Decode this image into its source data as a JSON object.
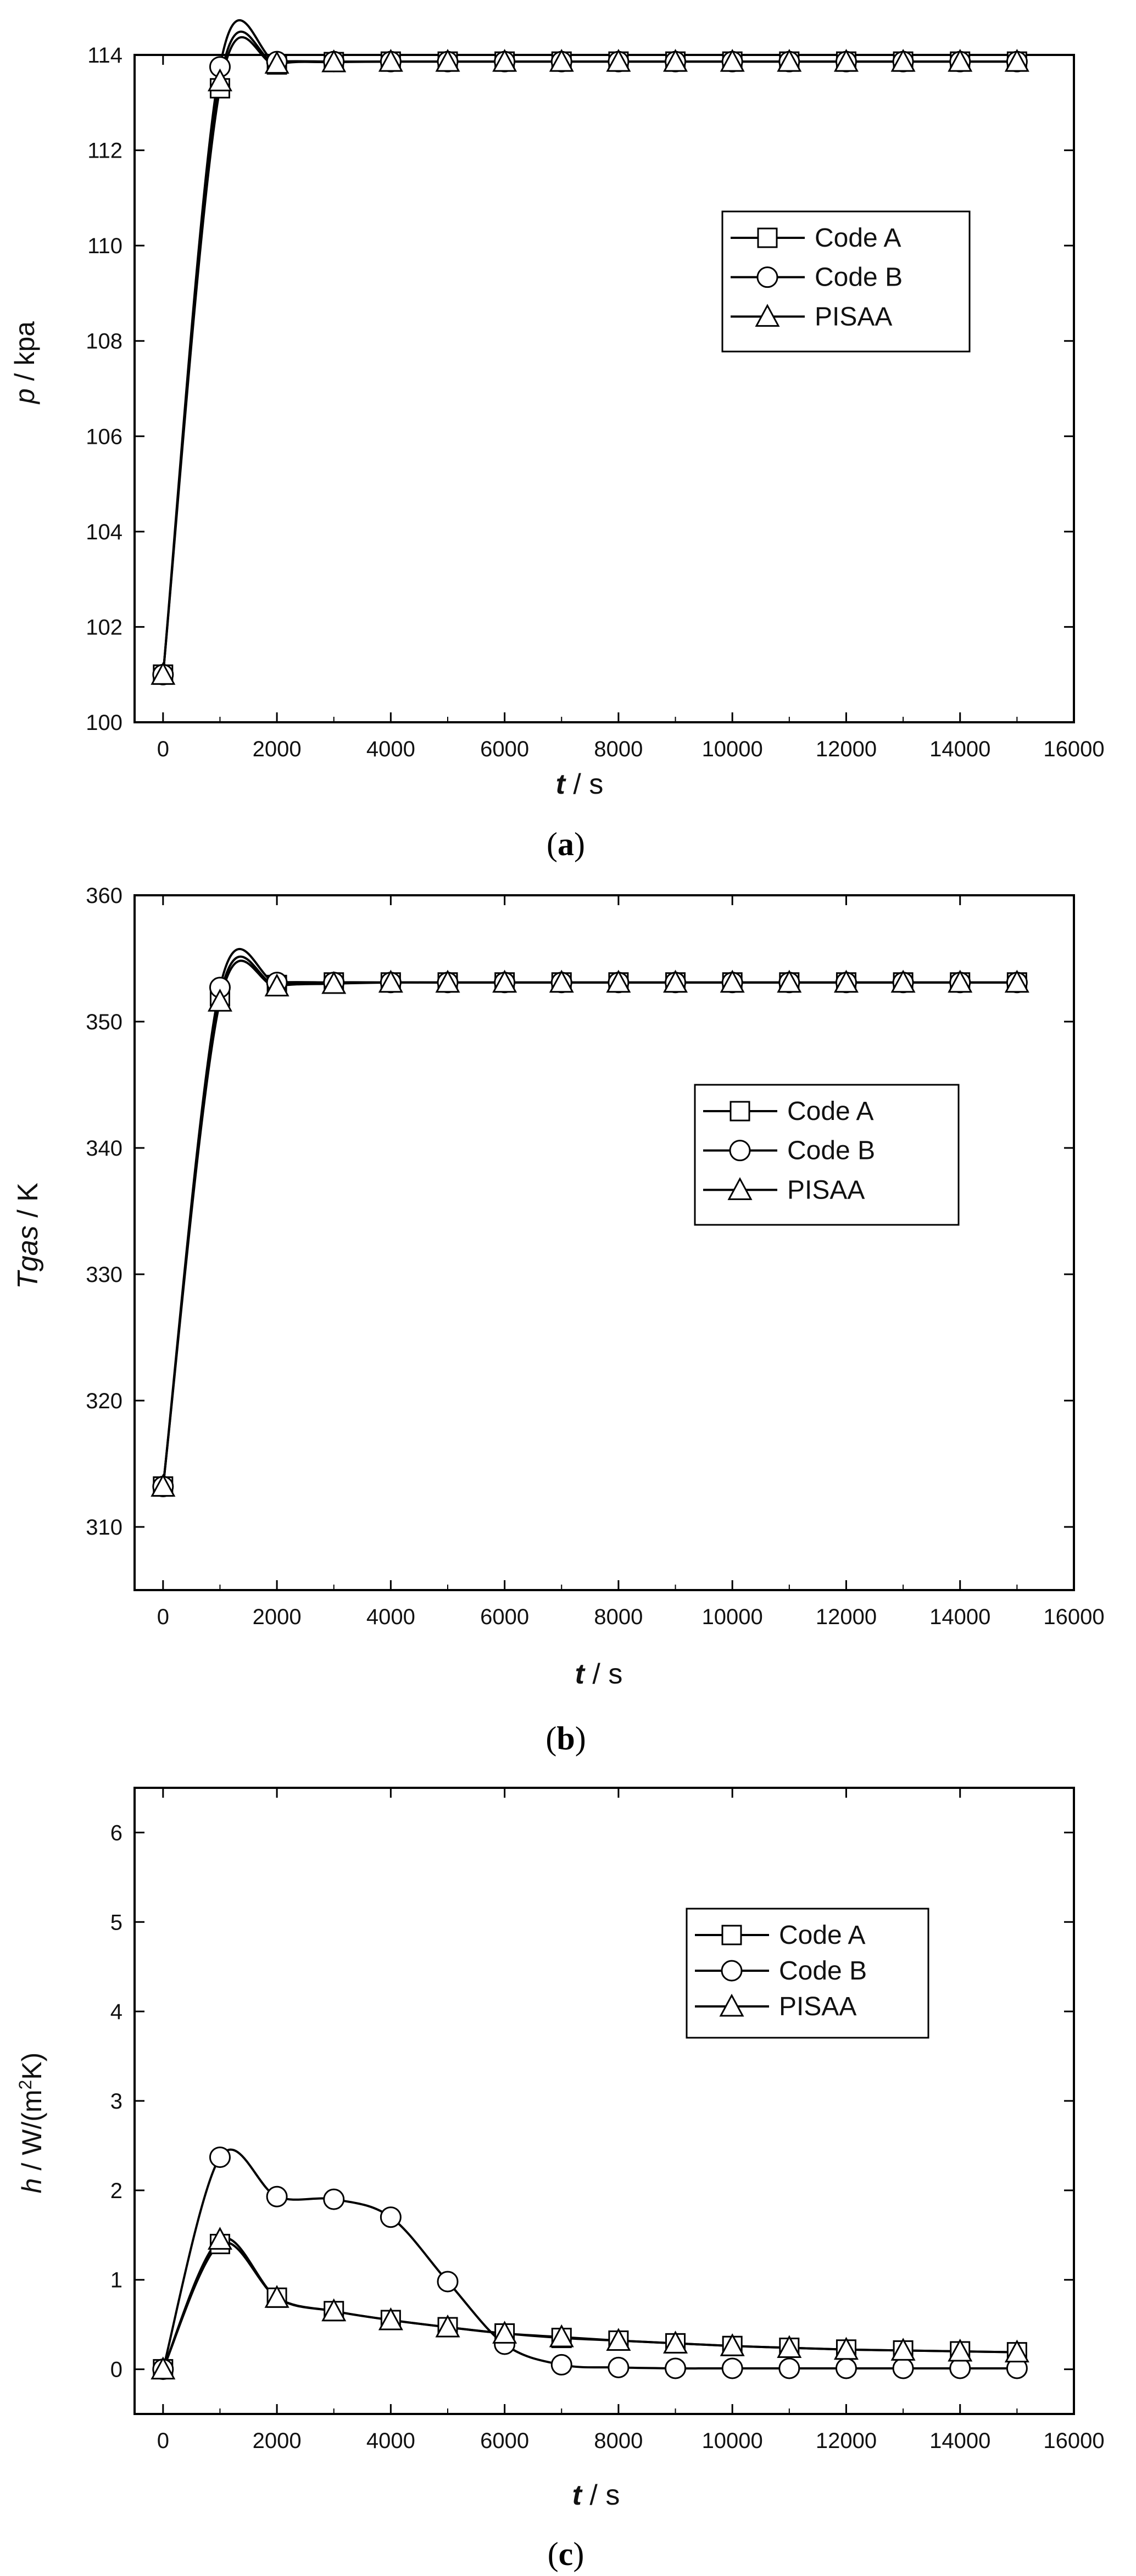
{
  "chart_data": [
    {
      "type": "line",
      "panel_label": "a",
      "xlabel": "t",
      "xlabel_unit": " / s",
      "ylabel": "p",
      "ylabel_unit": " / kpa",
      "xlim": [
        -500,
        16000
      ],
      "ylim": [
        100,
        114
      ],
      "xticks": [
        "0",
        "2000",
        "4000",
        "6000",
        "8000",
        "10000",
        "12000",
        "14000",
        "16000"
      ],
      "yticks": [
        "100",
        "102",
        "104",
        "106",
        "108",
        "110",
        "112",
        "114"
      ],
      "series": [
        {
          "name": "Code A",
          "marker": "square",
          "x": [
            0,
            1000,
            2000,
            3000,
            4000,
            5000,
            6000,
            7000,
            8000,
            9000,
            10000,
            11000,
            12000,
            13000,
            14000,
            15000
          ],
          "y": [
            101,
            113.3,
            113.8,
            113.85,
            113.86,
            113.86,
            113.86,
            113.86,
            113.86,
            113.86,
            113.86,
            113.86,
            113.86,
            113.86,
            113.86,
            113.86
          ]
        },
        {
          "name": "Code B",
          "marker": "circle",
          "x": [
            0,
            1000,
            2000,
            3000,
            4000,
            5000,
            6000,
            7000,
            8000,
            9000,
            10000,
            11000,
            12000,
            13000,
            14000,
            15000
          ],
          "y": [
            101,
            113.75,
            113.86,
            113.86,
            113.86,
            113.86,
            113.86,
            113.86,
            113.86,
            113.86,
            113.86,
            113.86,
            113.86,
            113.86,
            113.86,
            113.86
          ]
        },
        {
          "name": "PISAA",
          "marker": "triangle",
          "x": [
            0,
            1000,
            2000,
            3000,
            4000,
            5000,
            6000,
            7000,
            8000,
            9000,
            10000,
            11000,
            12000,
            13000,
            14000,
            15000
          ],
          "y": [
            101,
            113.45,
            113.82,
            113.85,
            113.86,
            113.86,
            113.86,
            113.86,
            113.86,
            113.86,
            113.86,
            113.86,
            113.86,
            113.86,
            113.86,
            113.86
          ]
        }
      ],
      "legend": {
        "position": "upper-right",
        "entries": [
          "Code A",
          "Code B",
          "PISAA"
        ]
      }
    },
    {
      "type": "line",
      "panel_label": "b",
      "xlabel": "t",
      "xlabel_unit": " / s",
      "ylabel": "Tgas",
      "ylabel_unit": " / K",
      "xlim": [
        -500,
        16000
      ],
      "ylim": [
        305,
        360
      ],
      "xticks": [
        "0",
        "2000",
        "4000",
        "6000",
        "8000",
        "10000",
        "12000",
        "14000",
        "16000"
      ],
      "yticks": [
        "310",
        "320",
        "330",
        "340",
        "350",
        "360"
      ],
      "series": [
        {
          "name": "Code A",
          "marker": "square",
          "x": [
            0,
            1000,
            2000,
            3000,
            4000,
            5000,
            6000,
            7000,
            8000,
            9000,
            10000,
            11000,
            12000,
            13000,
            14000,
            15000
          ],
          "y": [
            313.2,
            352,
            352.9,
            353.1,
            353.1,
            353.1,
            353.1,
            353.1,
            353.1,
            353.1,
            353.1,
            353.1,
            353.1,
            353.1,
            353.1,
            353.1
          ]
        },
        {
          "name": "Code B",
          "marker": "circle",
          "x": [
            0,
            1000,
            2000,
            3000,
            4000,
            5000,
            6000,
            7000,
            8000,
            9000,
            10000,
            11000,
            12000,
            13000,
            14000,
            15000
          ],
          "y": [
            313.2,
            352.7,
            353.1,
            353.1,
            353.1,
            353.1,
            353.1,
            353.1,
            353.1,
            353.1,
            353.1,
            353.1,
            353.1,
            353.1,
            353.1,
            353.1
          ]
        },
        {
          "name": "PISAA",
          "marker": "triangle",
          "x": [
            0,
            1000,
            2000,
            3000,
            4000,
            5000,
            6000,
            7000,
            8000,
            9000,
            10000,
            11000,
            12000,
            13000,
            14000,
            15000
          ],
          "y": [
            313.2,
            351.6,
            352.8,
            353,
            353.1,
            353.1,
            353.1,
            353.1,
            353.1,
            353.1,
            353.1,
            353.1,
            353.1,
            353.1,
            353.1,
            353.1
          ]
        }
      ],
      "legend": {
        "position": "right",
        "entries": [
          "Code A",
          "Code B",
          "PISAA"
        ]
      }
    },
    {
      "type": "line",
      "panel_label": "c",
      "xlabel": "t",
      "xlabel_unit": " / s",
      "ylabel": "h",
      "ylabel_unit": " / W/(m",
      "ylabel_sup": "2",
      "ylabel_end": "K)",
      "xlim": [
        -500,
        16000
      ],
      "ylim": [
        -0.5,
        6.5
      ],
      "xticks": [
        "0",
        "2000",
        "4000",
        "6000",
        "8000",
        "10000",
        "12000",
        "14000",
        "16000"
      ],
      "yticks": [
        "0",
        "1",
        "2",
        "3",
        "4",
        "5",
        "6"
      ],
      "series": [
        {
          "name": "Code A",
          "marker": "square",
          "x": [
            0,
            1000,
            2000,
            3000,
            4000,
            5000,
            6000,
            7000,
            8000,
            9000,
            10000,
            11000,
            12000,
            13000,
            14000,
            15000
          ],
          "y": [
            0,
            1.4,
            0.8,
            0.65,
            0.55,
            0.47,
            0.4,
            0.35,
            0.32,
            0.29,
            0.26,
            0.24,
            0.22,
            0.21,
            0.2,
            0.19
          ]
        },
        {
          "name": "Code B",
          "marker": "circle",
          "x": [
            0,
            1000,
            2000,
            3000,
            4000,
            5000,
            6000,
            7000,
            8000,
            9000,
            10000,
            11000,
            12000,
            13000,
            14000,
            15000
          ],
          "y": [
            0,
            2.37,
            1.93,
            1.9,
            1.7,
            0.98,
            0.28,
            0.05,
            0.02,
            0.01,
            0.01,
            0.01,
            0.01,
            0.01,
            0.01,
            0.01
          ]
        },
        {
          "name": "PISAA",
          "marker": "triangle",
          "x": [
            0,
            1000,
            2000,
            3000,
            4000,
            5000,
            6000,
            7000,
            8000,
            9000,
            10000,
            11000,
            12000,
            13000,
            14000,
            15000
          ],
          "y": [
            0,
            1.45,
            0.8,
            0.65,
            0.55,
            0.47,
            0.4,
            0.36,
            0.32,
            0.29,
            0.26,
            0.24,
            0.22,
            0.21,
            0.2,
            0.19
          ]
        }
      ],
      "legend": {
        "position": "upper-right",
        "entries": [
          "Code A",
          "Code B",
          "PISAA"
        ]
      }
    }
  ]
}
